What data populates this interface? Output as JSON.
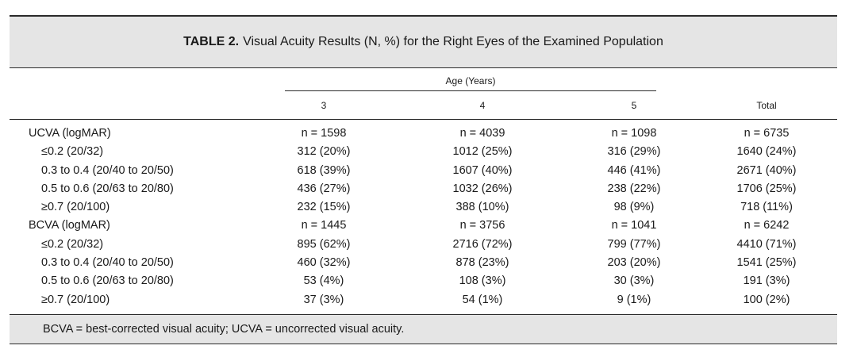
{
  "table": {
    "caption_label": "TABLE 2.",
    "caption_text": "Visual Acuity Results (N, %) for the Right Eyes of the Examined Population",
    "spanner": "Age (Years)",
    "col_headers": [
      "3",
      "4",
      "5",
      "Total"
    ],
    "rows": [
      {
        "label": "UCVA (logMAR)",
        "cells": [
          "n = 1598",
          "n = 4039",
          "n = 1098",
          "n = 6735"
        ]
      },
      {
        "label": "≤0.2 (20/32)",
        "cells": [
          "312 (20%)",
          "1012 (25%)",
          "316 (29%)",
          "1640 (24%)"
        ]
      },
      {
        "label": "0.3 to 0.4 (20/40 to 20/50)",
        "cells": [
          "618 (39%)",
          "1607 (40%)",
          "446 (41%)",
          "2671 (40%)"
        ]
      },
      {
        "label": "0.5 to 0.6 (20/63 to 20/80)",
        "cells": [
          "436 (27%)",
          "1032 (26%)",
          "238 (22%)",
          "1706 (25%)"
        ]
      },
      {
        "label": "≥0.7 (20/100)",
        "cells": [
          "232 (15%)",
          "388 (10%)",
          "98 (9%)",
          "718 (11%)"
        ]
      },
      {
        "label": "BCVA (logMAR)",
        "cells": [
          "n = 1445",
          "n = 3756",
          "n = 1041",
          "n = 6242"
        ]
      },
      {
        "label": "≤0.2 (20/32)",
        "cells": [
          "895 (62%)",
          "2716 (72%)",
          "799 (77%)",
          "4410 (71%)"
        ]
      },
      {
        "label": "0.3 to 0.4 (20/40 to 20/50)",
        "cells": [
          "460 (32%)",
          "878 (23%)",
          "203 (20%)",
          "1541 (25%)"
        ]
      },
      {
        "label": "0.5 to 0.6 (20/63 to 20/80)",
        "cells": [
          "53 (4%)",
          "108 (3%)",
          "30 (3%)",
          "191 (3%)"
        ]
      },
      {
        "label": "≥0.7 (20/100)",
        "cells": [
          "37 (3%)",
          "54 (1%)",
          "9 (1%)",
          "100 (2%)"
        ]
      }
    ],
    "footnote": "BCVA = best-corrected visual acuity; UCVA = uncorrected visual acuity."
  }
}
